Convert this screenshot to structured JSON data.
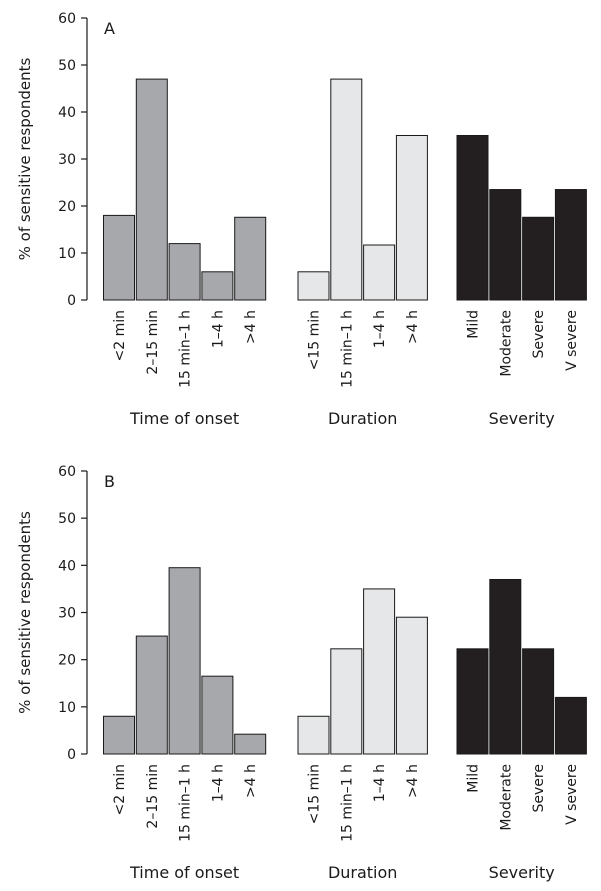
{
  "colors": {
    "time_of_onset": "#a7a8ab",
    "duration": "#e6e7e8",
    "severity": "#231f20",
    "stroke": "#1a1a1a"
  },
  "chart_data": [
    {
      "type": "bar",
      "panel_label": "A",
      "ylabel": "% of sensitive respondents",
      "ylim": [
        0,
        60
      ],
      "yticks": [
        0,
        10,
        20,
        30,
        40,
        50,
        60
      ],
      "groups": [
        {
          "name": "Time of onset",
          "color": "#a7a8ab",
          "categories": [
            "<2 min",
            "2–15 min",
            "15 min–1 h",
            "1–4 h",
            ">4 h"
          ],
          "values": [
            18,
            47,
            12,
            6,
            17.6
          ]
        },
        {
          "name": "Duration",
          "color": "#e6e7e8",
          "categories": [
            "<15 min",
            "15 min–1 h",
            "1–4 h",
            ">4 h"
          ],
          "values": [
            6,
            47,
            11.7,
            35
          ]
        },
        {
          "name": "Severity",
          "color": "#231f20",
          "categories": [
            "Mild",
            "Moderate",
            "Severe",
            "V severe"
          ],
          "values": [
            35,
            23.5,
            17.6,
            23.5
          ]
        }
      ]
    },
    {
      "type": "bar",
      "panel_label": "B",
      "ylabel": "% of sensitive respondents",
      "ylim": [
        0,
        60
      ],
      "yticks": [
        0,
        10,
        20,
        30,
        40,
        50,
        60
      ],
      "groups": [
        {
          "name": "Time of onset",
          "color": "#a7a8ab",
          "categories": [
            "<2 min",
            "2–15 min",
            "15 min–1 h",
            "1–4 h",
            ">4 h"
          ],
          "values": [
            8,
            25,
            39.5,
            16.5,
            4.2
          ]
        },
        {
          "name": "Duration",
          "color": "#e6e7e8",
          "categories": [
            "<15 min",
            "15 min–1 h",
            "1–4 h",
            ">4 h"
          ],
          "values": [
            8,
            22.3,
            35,
            29
          ]
        },
        {
          "name": "Severity",
          "color": "#231f20",
          "categories": [
            "Mild",
            "Moderate",
            "Severe",
            "V severe"
          ],
          "values": [
            22.3,
            37,
            22.3,
            12
          ]
        }
      ]
    }
  ]
}
